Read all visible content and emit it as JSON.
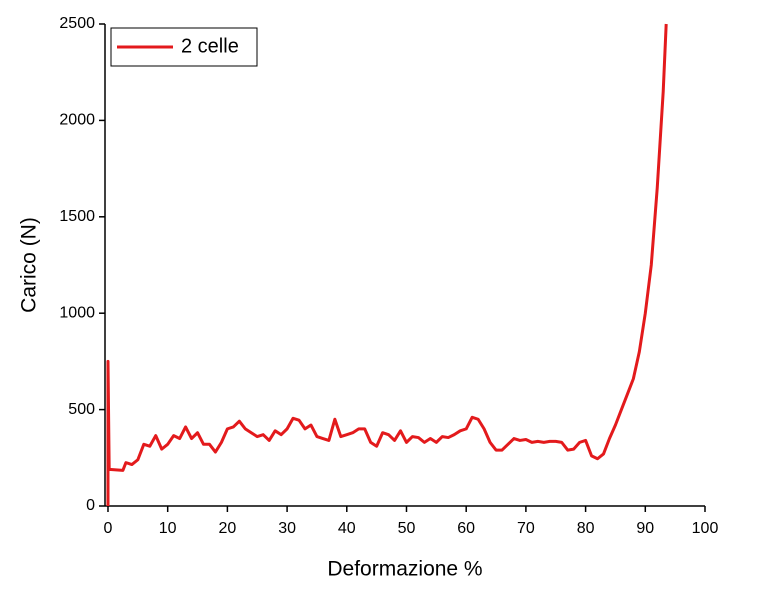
{
  "chart_data": {
    "type": "line",
    "x_label": "Deformazione %",
    "y_label": "Carico (N)",
    "xlim": [
      -0.5,
      100
    ],
    "ylim": [
      0,
      2500
    ],
    "xticks": [
      0,
      10,
      20,
      30,
      40,
      50,
      60,
      70,
      80,
      90,
      100
    ],
    "yticks": [
      0,
      500,
      1000,
      1500,
      2000,
      2500
    ],
    "legend": "top-left",
    "series": [
      {
        "name": "2 celle",
        "color": "#e31a1c",
        "x": [
          0,
          0,
          0.2,
          2.5,
          3,
          4,
          5,
          6,
          7,
          8,
          9,
          10,
          11,
          12,
          13,
          14,
          15,
          16,
          17,
          18,
          19,
          20,
          21,
          22,
          23,
          24,
          25,
          26,
          27,
          28,
          29,
          30,
          31,
          32,
          33,
          34,
          35,
          36,
          37,
          38,
          39,
          40,
          41,
          42,
          43,
          44,
          45,
          46,
          47,
          48,
          49,
          50,
          51,
          52,
          53,
          54,
          55,
          56,
          57,
          58,
          59,
          60,
          61,
          62,
          63,
          64,
          65,
          66,
          67,
          68,
          69,
          70,
          71,
          72,
          73,
          74,
          75,
          76,
          77,
          78,
          79,
          80,
          81,
          82,
          83,
          84,
          85,
          86,
          87,
          88,
          89,
          90,
          91,
          92,
          93,
          93.5
        ],
        "values": [
          0,
          750,
          190,
          185,
          225,
          215,
          240,
          320,
          310,
          365,
          295,
          320,
          365,
          350,
          410,
          350,
          380,
          320,
          320,
          280,
          330,
          400,
          410,
          440,
          400,
          380,
          360,
          370,
          340,
          390,
          370,
          400,
          455,
          445,
          400,
          420,
          360,
          350,
          340,
          450,
          360,
          370,
          380,
          400,
          400,
          330,
          310,
          380,
          370,
          340,
          390,
          330,
          360,
          355,
          330,
          350,
          330,
          360,
          355,
          370,
          390,
          400,
          460,
          450,
          400,
          330,
          290,
          290,
          320,
          350,
          340,
          345,
          330,
          335,
          330,
          335,
          335,
          330,
          290,
          295,
          330,
          340,
          260,
          245,
          270,
          350,
          420,
          500,
          580,
          660,
          800,
          1000,
          1250,
          1650,
          2150,
          2500
        ]
      }
    ]
  }
}
